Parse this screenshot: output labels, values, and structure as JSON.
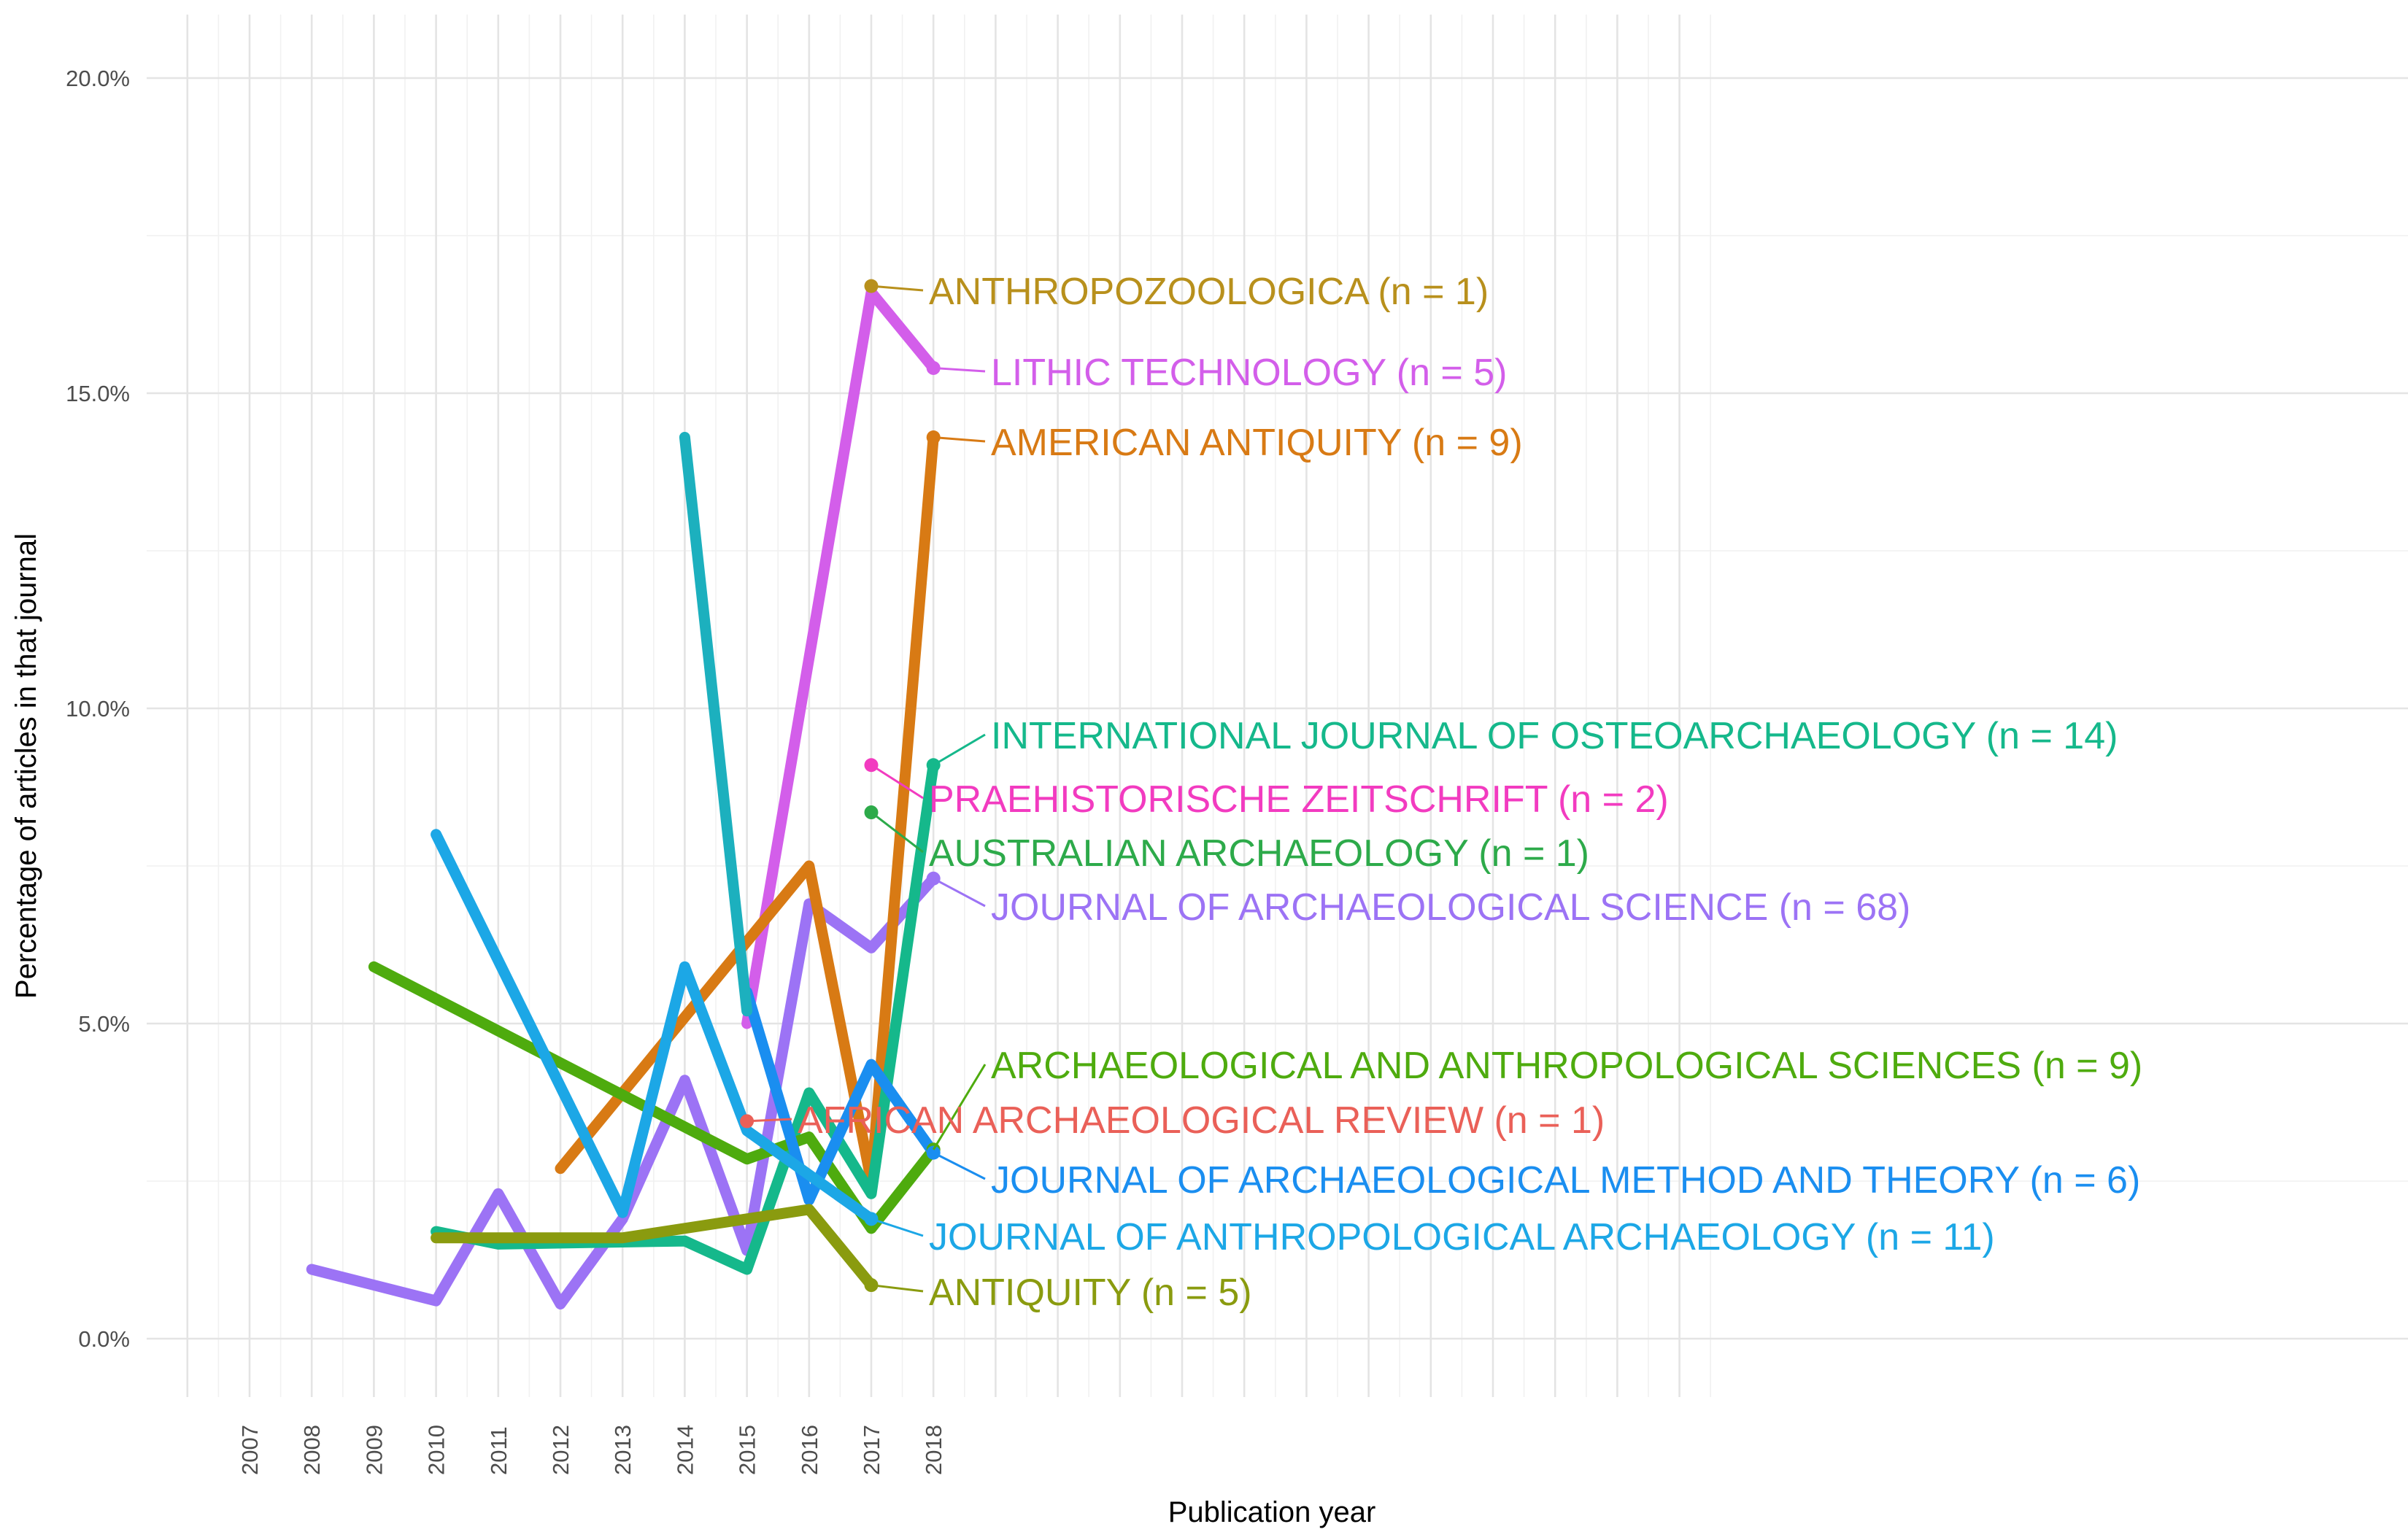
{
  "chart_data": {
    "type": "line",
    "title": "",
    "xlabel": "Publication year",
    "ylabel": "Percentage of articles in that journal",
    "x_ticks": [
      2007,
      2008,
      2009,
      2010,
      2011,
      2012,
      2013,
      2014,
      2015,
      2016,
      2017,
      2018
    ],
    "xlim": [
      2006,
      2030
    ],
    "ylim": [
      -0.9,
      21.0
    ],
    "y_ticks": [
      0,
      5,
      10,
      15,
      20
    ],
    "y_tick_labels": [
      "0.0%",
      "5.0%",
      "10.0%",
      "15.0%",
      "20.0%"
    ],
    "grid": true,
    "legend": "direct labels at line ends",
    "series": [
      {
        "name": "JOURNAL OF ARCHAEOLOGICAL SCIENCE",
        "label": "JOURNAL OF ARCHAEOLOGICAL SCIENCE (n = 68)",
        "color": "#9C73F5",
        "x": [
          2008,
          2010,
          2011,
          2012,
          2013,
          2014,
          2015,
          2016,
          2017,
          2018
        ],
        "y": [
          1.1,
          0.6,
          2.3,
          0.55,
          1.9,
          4.1,
          1.4,
          6.9,
          6.2,
          7.3
        ]
      },
      {
        "name": "LITHIC TECHNOLOGY",
        "label": "LITHIC TECHNOLOGY (n = 5)",
        "color": "#D35EEA",
        "x": [
          2015,
          2017,
          2018
        ],
        "y": [
          5.0,
          16.6,
          15.4
        ]
      },
      {
        "name": "AMERICAN ANTIQUITY",
        "label": "AMERICAN ANTIQUITY (n = 9)",
        "color": "#D87A14",
        "x": [
          2012,
          2016,
          2017,
          2018
        ],
        "y": [
          2.7,
          7.5,
          2.5,
          14.3
        ]
      },
      {
        "name": "INTERNATIONAL JOURNAL OF OSTEOARCHAEOLOGY",
        "label": "INTERNATIONAL JOURNAL OF OSTEOARCHAEOLOGY (n = 14)",
        "color": "#15B88B",
        "x": [
          2010,
          2011,
          2014,
          2015,
          2016,
          2017,
          2018
        ],
        "y": [
          1.7,
          1.5,
          1.55,
          1.1,
          3.9,
          2.3,
          9.1
        ]
      },
      {
        "name": "ARCHAEOLOGICAL AND ANTHROPOLOGICAL SCIENCES",
        "label": "ARCHAEOLOGICAL AND ANTHROPOLOGICAL SCIENCES (n = 9)",
        "color": "#4EAB0E",
        "x": [
          2009,
          2015,
          2016,
          2017,
          2018
        ],
        "y": [
          5.9,
          2.85,
          3.2,
          1.75,
          3.0
        ]
      },
      {
        "name": "JOURNAL OF ARCHAEOLOGICAL METHOD AND THEORY",
        "label": "JOURNAL OF ARCHAEOLOGICAL METHOD AND THEORY (n = 6)",
        "color": "#1A8EF0",
        "x": [
          2015,
          2016,
          2017,
          2018
        ],
        "y": [
          5.5,
          2.2,
          4.35,
          2.95
        ]
      },
      {
        "name": "JOURNAL OF ANTHROPOLOGICAL ARCHAEOLOGY",
        "label": "JOURNAL OF ANTHROPOLOGICAL ARCHAEOLOGY (n = 11)",
        "color": "#1CA7E6",
        "x": [
          2010,
          2013,
          2014,
          2015,
          2017
        ],
        "y": [
          8.0,
          2.0,
          5.9,
          3.3,
          1.9
        ]
      },
      {
        "name": "ANTIQUITY",
        "label": "ANTIQUITY (n = 5)",
        "color": "#8A9B0F",
        "x": [
          2010,
          2013,
          2016,
          2017
        ],
        "y": [
          1.6,
          1.6,
          2.05,
          0.85
        ]
      },
      {
        "name": "AFRICAN ARCHAEOLOGICAL REVIEW",
        "label": "AFRICAN ARCHAEOLOGICAL REVIEW (n = 1)",
        "color": "#EA6058",
        "x": [
          2015
        ],
        "y": [
          3.45
        ]
      },
      {
        "name": "ANTHROPOZOOLOGICA",
        "label": "ANTHROPOZOOLOGICA (n = 1)",
        "color": "#B8901C",
        "x": [
          2017
        ],
        "y": [
          16.7
        ]
      },
      {
        "name": "PRAEHISTORISCHE ZEITSCHRIFT",
        "label": "PRAEHISTORISCHE ZEITSCHRIFT (n = 2)",
        "color": "#F23BC0",
        "x": [
          2017
        ],
        "y": [
          9.1
        ]
      },
      {
        "name": "AUSTRALIAN ARCHAEOLOGY",
        "label": "AUSTRALIAN ARCHAEOLOGY (n = 1)",
        "color": "#2DAA4A",
        "x": [
          2017
        ],
        "y": [
          8.35
        ]
      }
    ],
    "late_series": [
      {
        "name": "JOURNAL OF ANTHROPOLOGICAL ARCHAEOLOGY 2014",
        "color": "#1CB0BE",
        "x": [
          2014,
          2015
        ],
        "y": [
          14.3,
          5.2
        ]
      }
    ]
  }
}
